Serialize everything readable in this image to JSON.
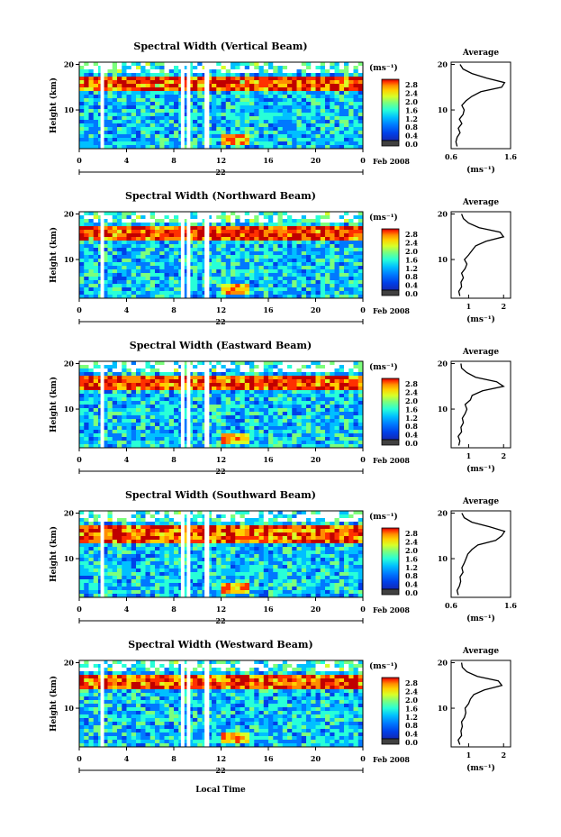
{
  "figure": {
    "x_axis_label": "Local Time",
    "date_label": "Feb 2008",
    "day_label": "22",
    "unit_label": "(ms⁻¹)",
    "avg_title": "Average",
    "y_axis_label": "Height (km)"
  },
  "colorbar": {
    "ticks": [
      "2.8",
      "2.4",
      "2.0",
      "1.6",
      "1.2",
      "0.8",
      "0.4",
      "0.0"
    ],
    "colors": [
      "#c00000",
      "#ff3000",
      "#ff8c00",
      "#ffd000",
      "#d8ff28",
      "#7cff7c",
      "#28ffd8",
      "#00c0ff",
      "#0078ff",
      "#0040e8",
      "#1428b4",
      "#282878",
      "#404040"
    ]
  },
  "panels": [
    {
      "title": "Spectral Width (Vertical Beam)",
      "x_ticks": [
        "0",
        "4",
        "8",
        "12",
        "16",
        "20",
        "0"
      ],
      "y_ticks": [
        "20",
        "10"
      ],
      "avg_x_ticks": [
        "0.6",
        "1.6"
      ],
      "avg_y_ticks": [
        "20",
        "10"
      ]
    },
    {
      "title": "Spectral Width (Northward Beam)",
      "x_ticks": [
        "0",
        "4",
        "8",
        "12",
        "16",
        "20",
        "0"
      ],
      "y_ticks": [
        "20",
        "10"
      ],
      "avg_x_ticks": [
        "1",
        "2"
      ],
      "avg_y_ticks": [
        "20",
        "10"
      ]
    },
    {
      "title": "Spectral Width (Eastward Beam)",
      "x_ticks": [
        "0",
        "4",
        "8",
        "12",
        "16",
        "20",
        "0"
      ],
      "y_ticks": [
        "20",
        "10"
      ],
      "avg_x_ticks": [
        "1",
        "2"
      ],
      "avg_y_ticks": [
        "20",
        "10"
      ]
    },
    {
      "title": "Spectral Width (Southward Beam)",
      "x_ticks": [
        "0",
        "4",
        "8",
        "12",
        "16",
        "20",
        "0"
      ],
      "y_ticks": [
        "20",
        "10"
      ],
      "avg_x_ticks": [
        "0.6",
        "1.6"
      ],
      "avg_y_ticks": [
        "20",
        "10"
      ]
    },
    {
      "title": "Spectral Width (Westward Beam)",
      "x_ticks": [
        "0",
        "4",
        "8",
        "12",
        "16",
        "20",
        "0"
      ],
      "y_ticks": [
        "20",
        "10"
      ],
      "avg_x_ticks": [
        "1",
        "2"
      ],
      "avg_y_ticks": [
        "20",
        "10"
      ]
    }
  ],
  "chart_data": [
    {
      "type": "heatmap",
      "title": "Spectral Width (Vertical Beam)",
      "xlabel": "",
      "ylabel": "Height (km)",
      "xlim": [
        0,
        24
      ],
      "ylim": [
        1.5,
        20.5
      ],
      "colorbar_range": [
        0.0,
        2.8
      ],
      "data_gaps_hours": [
        [
          1.8,
          2.1
        ],
        [
          8.6,
          8.9
        ],
        [
          9.1,
          9.4
        ],
        [
          10.6,
          11.0
        ]
      ],
      "features": {
        "high_width_layer_km": [
          14,
          17
        ],
        "low_level_patch_hour": 13,
        "low_level_patch_km": 3
      }
    },
    {
      "type": "line",
      "title": "Average",
      "xlabel": "(ms⁻¹)",
      "ylabel": "",
      "xlim": [
        0.6,
        1.6
      ],
      "ylim": [
        1.5,
        20.5
      ],
      "profile_height_km": [
        2,
        3,
        4,
        5,
        6,
        7,
        8,
        9,
        10,
        11,
        12,
        13,
        14,
        15,
        16,
        17,
        18,
        19,
        20
      ],
      "profile_value": [
        0.7,
        0.68,
        0.7,
        0.75,
        0.72,
        0.78,
        0.74,
        0.8,
        0.82,
        0.78,
        0.85,
        0.95,
        1.1,
        1.45,
        1.5,
        1.2,
        0.95,
        0.8,
        0.75
      ]
    },
    {
      "type": "heatmap",
      "title": "Spectral Width (Northward Beam)",
      "xlabel": "",
      "ylabel": "Height (km)",
      "xlim": [
        0,
        24
      ],
      "ylim": [
        1.5,
        20.5
      ],
      "colorbar_range": [
        0.0,
        2.8
      ],
      "data_gaps_hours": [
        [
          1.8,
          2.1
        ],
        [
          8.6,
          8.9
        ],
        [
          9.1,
          9.4
        ],
        [
          10.6,
          11.0
        ]
      ],
      "features": {
        "high_width_layer_km": [
          14,
          17
        ],
        "low_level_patch_hour": 13,
        "low_level_patch_km": 3
      }
    },
    {
      "type": "line",
      "title": "Average",
      "xlabel": "(ms⁻¹)",
      "ylabel": "",
      "xlim": [
        0.5,
        2.2
      ],
      "ylim": [
        1.5,
        20.5
      ],
      "profile_height_km": [
        2,
        3,
        4,
        5,
        6,
        7,
        8,
        9,
        10,
        11,
        12,
        13,
        14,
        15,
        16,
        17,
        18,
        19,
        20
      ],
      "profile_value": [
        0.75,
        0.72,
        0.8,
        0.78,
        0.85,
        0.8,
        0.9,
        0.95,
        0.88,
        1.0,
        1.1,
        1.2,
        1.5,
        2.0,
        1.9,
        1.3,
        1.0,
        0.85,
        0.8
      ]
    },
    {
      "type": "heatmap",
      "title": "Spectral Width (Eastward Beam)",
      "xlabel": "",
      "ylabel": "Height (km)",
      "xlim": [
        0,
        24
      ],
      "ylim": [
        1.5,
        20.5
      ],
      "colorbar_range": [
        0.0,
        2.8
      ],
      "data_gaps_hours": [
        [
          1.8,
          2.1
        ],
        [
          8.6,
          8.9
        ],
        [
          9.1,
          9.4
        ],
        [
          10.6,
          11.0
        ]
      ],
      "features": {
        "high_width_layer_km": [
          14,
          17
        ],
        "low_level_patch_hour": 13,
        "low_level_patch_km": 3
      }
    },
    {
      "type": "line",
      "title": "Average",
      "xlabel": "(ms⁻¹)",
      "ylabel": "",
      "xlim": [
        0.5,
        2.2
      ],
      "ylim": [
        1.5,
        20.5
      ],
      "profile_height_km": [
        2,
        3,
        4,
        5,
        6,
        7,
        8,
        9,
        10,
        11,
        12,
        13,
        14,
        15,
        16,
        17,
        18,
        19,
        20
      ],
      "profile_value": [
        0.72,
        0.75,
        0.7,
        0.8,
        0.78,
        0.85,
        0.82,
        0.9,
        0.95,
        0.9,
        1.05,
        1.1,
        1.4,
        2.0,
        1.8,
        1.2,
        0.95,
        0.8,
        0.78
      ]
    },
    {
      "type": "heatmap",
      "title": "Spectral Width (Southward Beam)",
      "xlabel": "",
      "ylabel": "Height (km)",
      "xlim": [
        0,
        24
      ],
      "ylim": [
        1.5,
        20.5
      ],
      "colorbar_range": [
        0.0,
        2.8
      ],
      "data_gaps_hours": [
        [
          1.8,
          2.1
        ],
        [
          8.6,
          8.9
        ],
        [
          9.1,
          9.4
        ],
        [
          10.6,
          11.0
        ]
      ],
      "features": {
        "high_width_layer_km": [
          13,
          17
        ],
        "low_level_patch_hour": 13,
        "low_level_patch_km": 3
      }
    },
    {
      "type": "line",
      "title": "Average",
      "xlabel": "(ms⁻¹)",
      "ylabel": "",
      "xlim": [
        0.6,
        1.6
      ],
      "ylim": [
        1.5,
        20.5
      ],
      "profile_height_km": [
        2,
        3,
        4,
        5,
        6,
        7,
        8,
        9,
        10,
        11,
        12,
        13,
        14,
        15,
        16,
        17,
        18,
        19,
        20
      ],
      "profile_value": [
        0.72,
        0.7,
        0.74,
        0.76,
        0.75,
        0.8,
        0.78,
        0.82,
        0.85,
        0.88,
        0.95,
        1.05,
        1.35,
        1.45,
        1.5,
        1.25,
        0.95,
        0.82,
        0.78
      ]
    },
    {
      "type": "heatmap",
      "title": "Spectral Width (Westward Beam)",
      "xlabel": "Local Time",
      "ylabel": "Height (km)",
      "xlim": [
        0,
        24
      ],
      "ylim": [
        1.5,
        20.5
      ],
      "colorbar_range": [
        0.0,
        2.8
      ],
      "data_gaps_hours": [
        [
          1.8,
          2.1
        ],
        [
          8.6,
          8.9
        ],
        [
          9.1,
          9.4
        ],
        [
          10.6,
          11.0
        ]
      ],
      "features": {
        "high_width_layer_km": [
          14,
          17
        ],
        "low_level_patch_hour": 13,
        "low_level_patch_km": 3
      }
    },
    {
      "type": "line",
      "title": "Average",
      "xlabel": "(ms⁻¹)",
      "ylabel": "",
      "xlim": [
        0.5,
        2.2
      ],
      "ylim": [
        1.5,
        20.5
      ],
      "profile_height_km": [
        2,
        3,
        4,
        5,
        6,
        7,
        8,
        9,
        10,
        11,
        12,
        13,
        14,
        15,
        16,
        17,
        18,
        19,
        20
      ],
      "profile_value": [
        0.75,
        0.7,
        0.8,
        0.78,
        0.82,
        0.8,
        0.88,
        0.92,
        0.9,
        1.0,
        1.05,
        1.15,
        1.45,
        1.95,
        1.85,
        1.25,
        0.95,
        0.82,
        0.8
      ]
    }
  ]
}
